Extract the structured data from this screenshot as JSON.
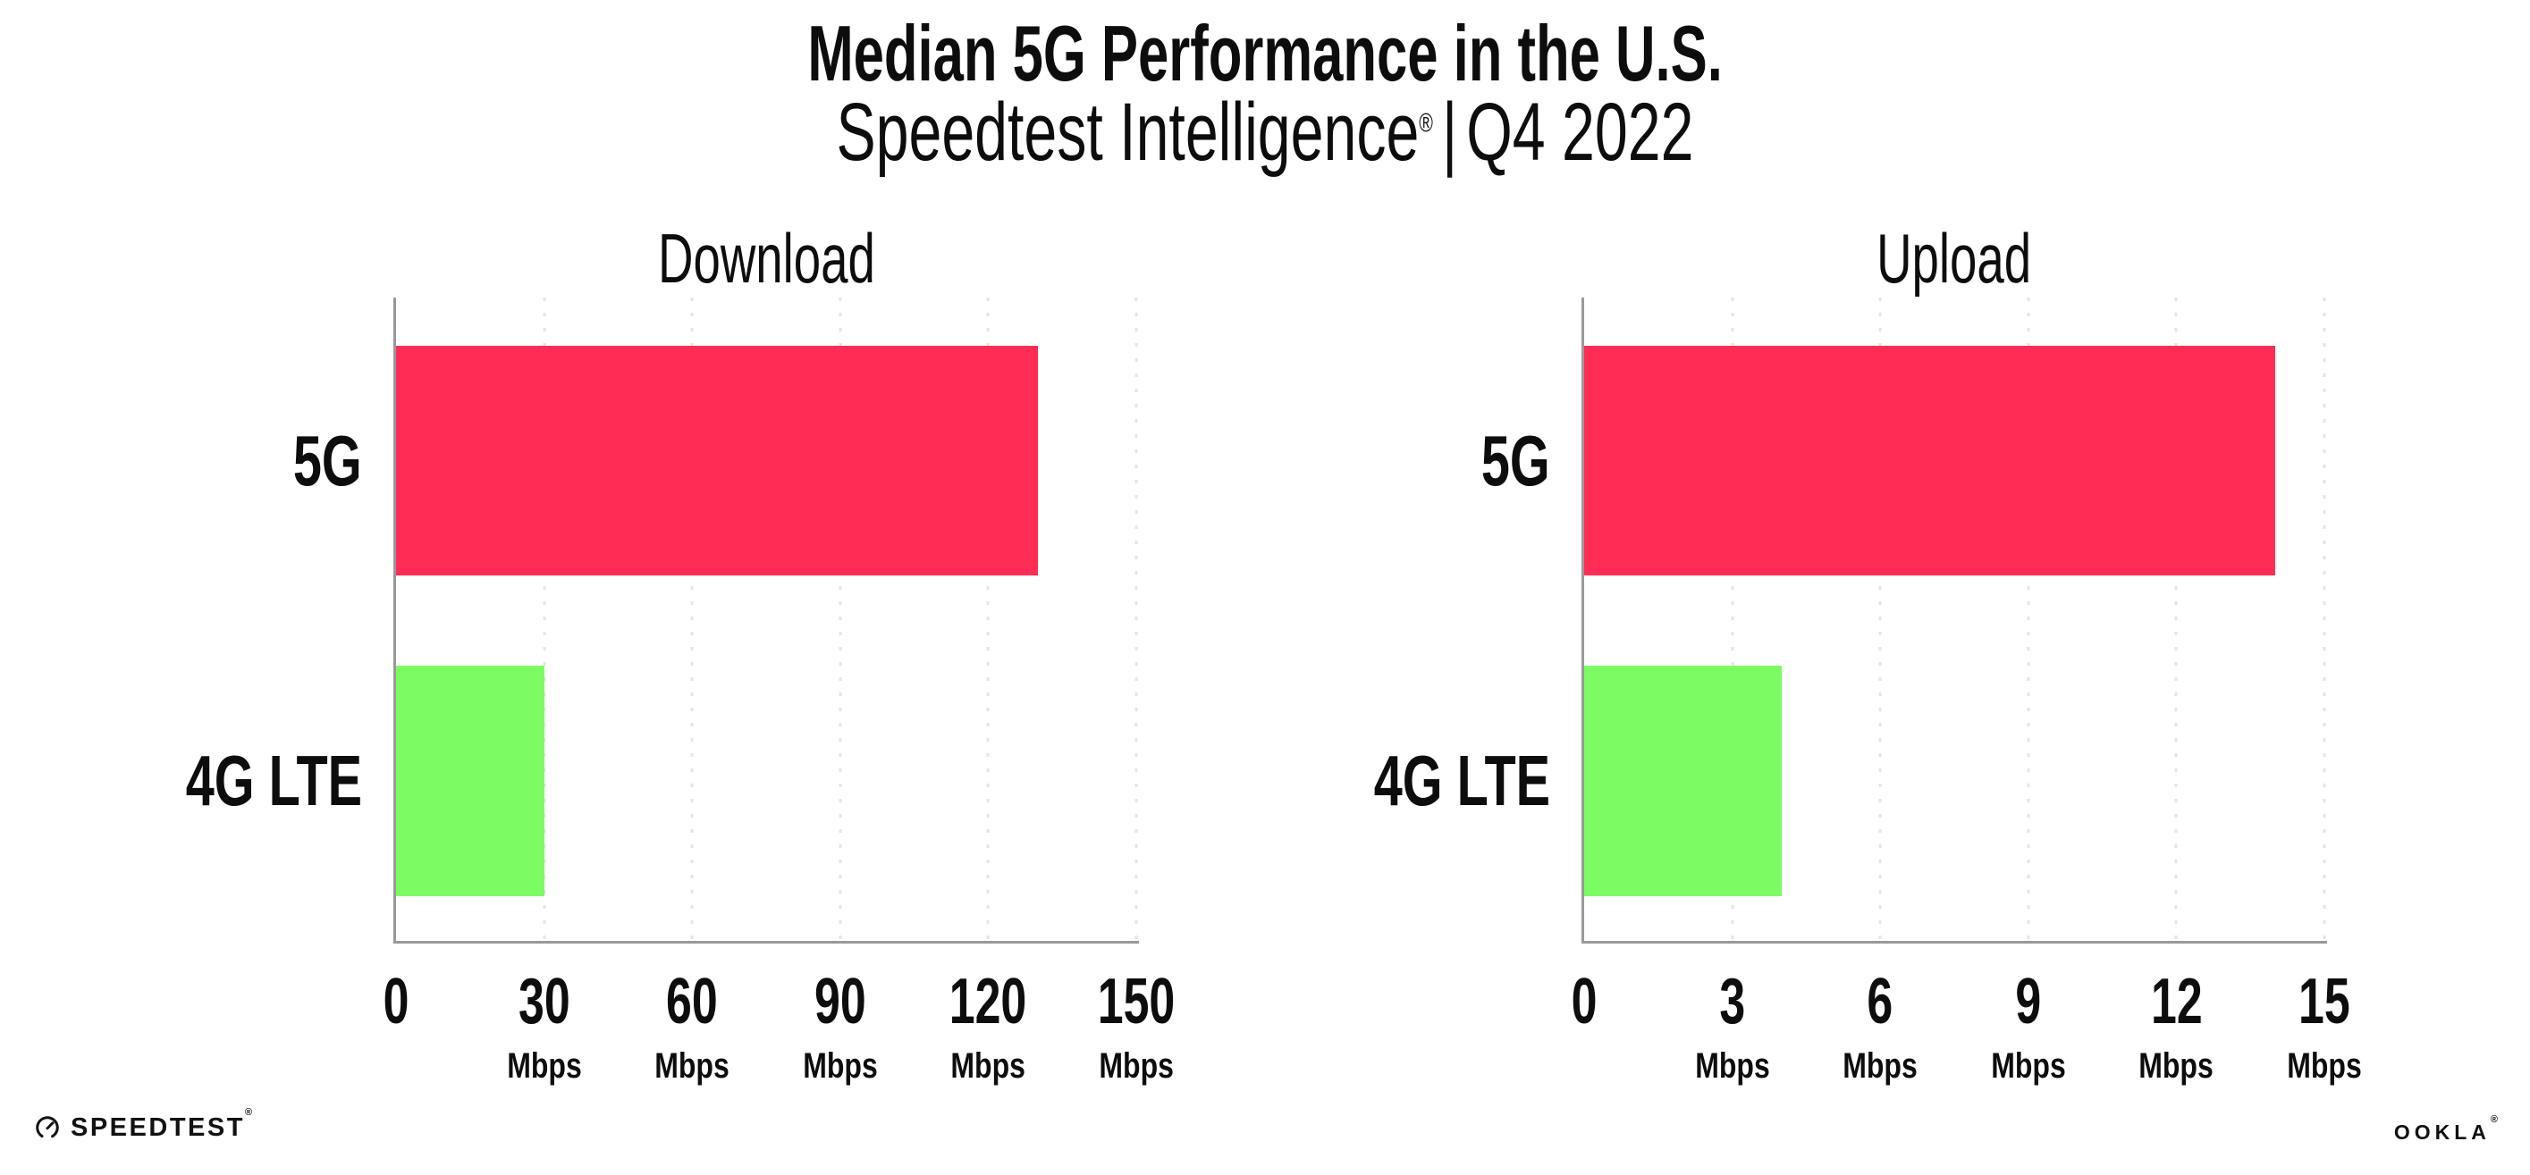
{
  "header": {
    "title": "Median 5G Performance in the U.S.",
    "subtitle": {
      "brand": "Speedtest Intelligence",
      "registered_mark": "®",
      "separator": "|",
      "period": "Q4 2022"
    }
  },
  "chart_data": [
    {
      "type": "bar",
      "orientation": "horizontal",
      "title": "Download",
      "categories": [
        "5G",
        "4G LTE"
      ],
      "values": [
        130,
        30
      ],
      "unit": "Mbps",
      "xlim": [
        0,
        150
      ],
      "xticks": [
        0,
        30,
        60,
        90,
        120,
        150
      ],
      "xtick_unit": "Mbps",
      "bar_colors": [
        "#FF2D55",
        "#7DFB63"
      ],
      "legend": "none",
      "grid": "vertical-dotted"
    },
    {
      "type": "bar",
      "orientation": "horizontal",
      "title": "Upload",
      "categories": [
        "5G",
        "4G LTE"
      ],
      "values": [
        14,
        4
      ],
      "unit": "Mbps",
      "xlim": [
        0,
        15
      ],
      "xticks": [
        0,
        3,
        6,
        9,
        12,
        15
      ],
      "xtick_unit": "Mbps",
      "bar_colors": [
        "#FF2D55",
        "#7DFB63"
      ],
      "legend": "none",
      "grid": "vertical-dotted"
    }
  ],
  "footer": {
    "speedtest_wordmark": "SPEEDTEST",
    "speedtest_mark": "®",
    "ookla_wordmark": "OOKLA",
    "ookla_mark": "®"
  },
  "colors": {
    "bar_5g": "#FF2D55",
    "bar_4g_lte": "#7DFB63",
    "axis": "#999999",
    "gridline": "#E4E4EC",
    "text": "#0D0D0D",
    "background": "#FFFFFF"
  }
}
